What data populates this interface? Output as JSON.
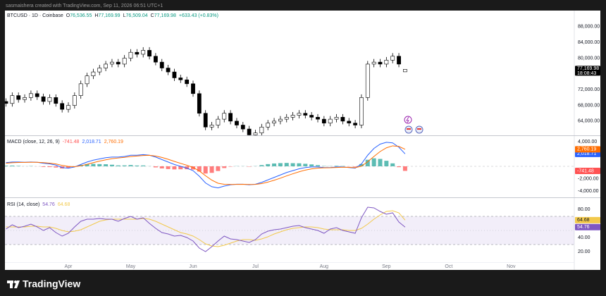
{
  "header": {
    "credit": "sasmaishera created with TradingView.com, Sep 11, 2026 06:51 UTC+1"
  },
  "footer": {
    "brand": "TradingView"
  },
  "chart_data": [
    {
      "type": "candlestick",
      "title": "BTCUSD · 1D · Coinbase",
      "legend": [
        {
          "label": "O",
          "value": "76,536.55"
        },
        {
          "label": "H",
          "value": "77,169.99"
        },
        {
          "label": "L",
          "value": "76,509.04"
        },
        {
          "label": "C",
          "value": "77,169.98"
        }
      ],
      "change": "+633.43 (+0.83%)",
      "last_label": "77,169.98",
      "countdown": "18:08:43",
      "up_color": "#ffffff",
      "down_color": "#000000",
      "wick_color": "#000000",
      "categories": [
        null,
        null,
        null,
        null,
        null,
        null,
        null,
        null,
        null,
        null,
        "Apr",
        null,
        null,
        null,
        null,
        null,
        null,
        null,
        null,
        null,
        "May",
        null,
        null,
        null,
        null,
        null,
        null,
        null,
        null,
        null,
        "Jun",
        null,
        null,
        null,
        null,
        null,
        null,
        null,
        null,
        null,
        "Jul",
        null,
        null,
        null,
        null,
        null,
        null,
        null,
        null,
        null,
        null,
        "Aug",
        null,
        null,
        null,
        null,
        null,
        null,
        null,
        null,
        null,
        "Sep",
        null,
        null,
        null,
        null,
        null,
        null,
        null,
        null,
        null,
        "Oct",
        null,
        null,
        null,
        null,
        null,
        null,
        null,
        null,
        null,
        "Nov",
        null,
        null,
        null,
        null,
        null,
        null,
        null,
        null,
        null
      ],
      "open": [
        69000,
        68500,
        70500,
        69500,
        70000,
        71000,
        70200,
        69000,
        70000,
        68500,
        67000,
        68000,
        70500,
        73500,
        75500,
        76500,
        77500,
        78500,
        79000,
        78500,
        80000,
        81500,
        81000,
        82000,
        80500,
        79000,
        77500,
        76500,
        75000,
        74500,
        73500,
        71000,
        66000,
        62500,
        63000,
        64500,
        66000,
        64000,
        63000,
        62000,
        60500,
        61000,
        62500,
        63500,
        64000,
        64500,
        65000,
        65500,
        66000,
        65500,
        65000,
        64500,
        63500,
        64500,
        65000,
        64000,
        63500,
        63000,
        70000,
        78500,
        79000,
        78500,
        79500,
        80500,
        76536.55,
        null,
        null,
        null,
        null,
        null,
        null,
        null,
        null,
        null,
        null,
        null,
        null,
        null,
        null,
        null,
        null,
        null,
        null,
        null,
        null,
        null,
        null,
        null,
        null,
        null,
        null
      ],
      "high": [
        69800,
        71300,
        71300,
        70800,
        71800,
        71800,
        71000,
        70800,
        70800,
        69300,
        68800,
        71300,
        74300,
        76300,
        77300,
        78300,
        79300,
        79800,
        79800,
        80800,
        82300,
        82300,
        82800,
        82800,
        81300,
        79800,
        78300,
        77300,
        75800,
        75300,
        74300,
        71800,
        66800,
        63800,
        65300,
        66800,
        66800,
        64800,
        63800,
        62800,
        61800,
        63300,
        64300,
        64800,
        65300,
        65800,
        66300,
        66800,
        66800,
        66300,
        65800,
        65300,
        65300,
        65800,
        65800,
        64800,
        64300,
        70800,
        79300,
        79800,
        79800,
        80300,
        81300,
        81300,
        77169.99,
        null,
        null,
        null,
        null,
        null,
        null,
        null,
        null,
        null,
        null,
        null,
        null,
        null,
        null,
        null,
        null,
        null,
        null,
        null,
        null,
        null,
        null,
        null,
        null,
        null,
        null
      ],
      "low": [
        67700,
        67700,
        68700,
        68700,
        69200,
        69400,
        68200,
        68200,
        67700,
        66200,
        66200,
        67200,
        69700,
        72700,
        74700,
        75700,
        76700,
        77700,
        77700,
        77700,
        79200,
        80200,
        80200,
        79700,
        78200,
        76700,
        75700,
        74200,
        73700,
        72700,
        70200,
        65200,
        61700,
        61700,
        62200,
        63700,
        63200,
        62200,
        61200,
        59700,
        59700,
        60200,
        61700,
        62700,
        63200,
        63700,
        64200,
        64700,
        64700,
        64200,
        63700,
        62700,
        62700,
        63700,
        63200,
        62700,
        62200,
        62200,
        69200,
        77700,
        77700,
        77700,
        78700,
        77700,
        76509.04,
        null,
        null,
        null,
        null,
        null,
        null,
        null,
        null,
        null,
        null,
        null,
        null,
        null,
        null,
        null,
        null,
        null,
        null,
        null,
        null,
        null,
        null,
        null,
        null,
        null,
        null
      ],
      "close": [
        68500,
        70500,
        69500,
        70000,
        71000,
        70200,
        69000,
        70000,
        68500,
        67000,
        68000,
        70500,
        73500,
        75500,
        76500,
        77500,
        78500,
        79000,
        78500,
        80000,
        81500,
        81000,
        82000,
        80500,
        79000,
        77500,
        76500,
        75000,
        74500,
        73500,
        71000,
        66000,
        62500,
        63000,
        64500,
        66000,
        64000,
        63000,
        62000,
        60500,
        61000,
        62500,
        63500,
        64000,
        64500,
        65000,
        65500,
        66000,
        65500,
        65000,
        64500,
        63500,
        64500,
        65000,
        64000,
        63500,
        63000,
        70000,
        78500,
        79000,
        78500,
        79500,
        80500,
        78500,
        77169.98,
        null,
        null,
        null,
        null,
        null,
        null,
        null,
        null,
        null,
        null,
        null,
        null,
        null,
        null,
        null,
        null,
        null,
        null,
        null,
        null,
        null,
        null,
        null,
        null,
        null,
        null
      ],
      "ylim": [
        60400,
        92100
      ],
      "yticks": [
        {
          "value": 64000,
          "label": "64,000.00"
        },
        {
          "value": 68000,
          "label": "68,000.00"
        },
        {
          "value": 72000,
          "label": "72,000.00"
        },
        {
          "value": 80000,
          "label": "80,000.00"
        },
        {
          "value": 84000,
          "label": "84,000.00"
        },
        {
          "value": 88000,
          "label": "88,000.00"
        }
      ]
    },
    {
      "type": "macd",
      "title": "MACD (close, 12, 26, 9)",
      "histogram": {
        "up_color": "#26a69a",
        "down_color": "#ff5252",
        "last_label": "-741.48",
        "values": [
          100,
          120,
          70,
          10,
          40,
          -10,
          -100,
          -120,
          -190,
          -350,
          -280,
          -40,
          220,
          370,
          400,
          360,
          340,
          260,
          150,
          150,
          210,
          130,
          140,
          20,
          -170,
          -340,
          -440,
          -500,
          -480,
          -470,
          -520,
          -850,
          -1170,
          -1060,
          -760,
          -280,
          -50,
          30,
          20,
          -50,
          30,
          200,
          360,
          460,
          520,
          550,
          510,
          490,
          410,
          310,
          190,
          50,
          30,
          80,
          50,
          -30,
          -80,
          370,
          1060,
          1300,
          1200,
          900,
          480,
          -130,
          -741.48,
          null,
          null,
          null,
          null,
          null,
          null,
          null,
          null,
          null,
          null,
          null,
          null,
          null,
          null,
          null,
          null,
          null,
          null,
          null,
          null,
          null,
          null,
          null,
          null,
          null,
          null
        ]
      },
      "series": [
        {
          "color": "#2962ff",
          "last_label": "2,018.71",
          "values": [
            600,
            700,
            700,
            650,
            700,
            650,
            500,
            400,
            200,
            -200,
            -300,
            -100,
            300,
            700,
            1000,
            1200,
            1400,
            1500,
            1500,
            1600,
            1800,
            1800,
            1900,
            1800,
            1500,
            1100,
            700,
            300,
            0,
            -300,
            -700,
            -1600,
            -2700,
            -3300,
            -3500,
            -3200,
            -3000,
            -2900,
            -2900,
            -3000,
            -2900,
            -2600,
            -2200,
            -1800,
            -1400,
            -1000,
            -700,
            -400,
            -200,
            -100,
            -100,
            -200,
            -200,
            -100,
            -100,
            -200,
            -300,
            400,
            1800,
            2900,
            3600,
            3900,
            3800,
            3100,
            2018.71,
            null,
            null,
            null,
            null,
            null,
            null,
            null,
            null,
            null,
            null,
            null,
            null,
            null,
            null,
            null,
            null,
            null,
            null,
            null,
            null,
            null,
            null,
            null,
            null,
            null,
            null
          ]
        },
        {
          "color": "#ff6d00",
          "last_label": "2,760.19",
          "values": [
            500,
            580,
            630,
            640,
            660,
            660,
            600,
            520,
            390,
            150,
            -20,
            -60,
            80,
            330,
            600,
            840,
            1060,
            1240,
            1350,
            1450,
            1590,
            1670,
            1760,
            1780,
            1670,
            1440,
            1140,
            800,
            480,
            170,
            -180,
            -750,
            -1530,
            -2240,
            -2740,
            -2920,
            -2950,
            -2930,
            -2920,
            -2950,
            -2930,
            -2800,
            -2560,
            -2260,
            -1920,
            -1550,
            -1210,
            -890,
            -610,
            -410,
            -290,
            -250,
            -230,
            -180,
            -150,
            -170,
            -220,
            30,
            740,
            1600,
            2400,
            3000,
            3320,
            3230,
            2760.19,
            null,
            null,
            null,
            null,
            null,
            null,
            null,
            null,
            null,
            null,
            null,
            null,
            null,
            null,
            null,
            null,
            null,
            null,
            null,
            null,
            null,
            null,
            null,
            null,
            null,
            null
          ]
        }
      ],
      "ylim": [
        -5030,
        4915
      ],
      "yticks": [
        {
          "value": 4000,
          "label": "4,000.00"
        },
        {
          "value": -2000,
          "label": "-2,000.00"
        },
        {
          "value": -4000,
          "label": "-4,000.00"
        }
      ]
    },
    {
      "type": "rsi",
      "title": "RSI (14, close)",
      "band": [
        30,
        70
      ],
      "midline": 50,
      "band_color": "#7e57c2",
      "series": [
        {
          "color": "#7e57c2",
          "last_label": "54.76",
          "values": [
            52,
            58,
            54,
            56,
            59,
            55,
            50,
            54,
            47,
            42,
            46,
            55,
            63,
            66,
            66,
            67,
            66,
            66,
            63,
            67,
            70,
            66,
            68,
            60,
            53,
            47,
            45,
            42,
            43,
            40,
            35,
            25,
            20,
            27,
            35,
            42,
            38,
            37,
            35,
            33,
            37,
            45,
            49,
            51,
            52,
            54,
            56,
            57,
            54,
            52,
            50,
            46,
            52,
            54,
            50,
            48,
            46,
            68,
            83,
            82,
            77,
            73,
            75,
            62,
            54.76,
            null,
            null,
            null,
            null,
            null,
            null,
            null,
            null,
            null,
            null,
            null,
            null,
            null,
            null,
            null,
            null,
            null,
            null,
            null,
            null,
            null,
            null,
            null,
            null,
            null,
            null
          ]
        },
        {
          "color": "#f2c94c",
          "last_label": "64.68",
          "values": [
            55,
            55,
            55,
            55,
            56,
            56,
            55,
            55,
            53,
            50,
            48,
            49,
            51,
            55,
            59,
            63,
            65,
            66,
            66,
            66,
            66,
            66,
            67,
            66,
            63,
            59,
            55,
            51,
            47,
            45,
            42,
            37,
            31,
            28,
            27,
            29,
            32,
            35,
            37,
            37,
            36,
            38,
            41,
            45,
            48,
            51,
            53,
            54,
            55,
            55,
            54,
            52,
            51,
            51,
            51,
            50,
            50,
            53,
            59,
            66,
            72,
            77,
            78,
            75,
            64.68,
            null,
            null,
            null,
            null,
            null,
            null,
            null,
            null,
            null,
            null,
            null,
            null,
            null,
            null,
            null,
            null,
            null,
            null,
            null,
            null,
            null,
            null,
            null,
            null,
            null,
            null
          ]
        }
      ],
      "ylim": [
        5,
        96
      ],
      "yticks": [
        {
          "value": 80,
          "label": "80.00"
        },
        {
          "value": 40,
          "label": "40.00"
        },
        {
          "value": 20,
          "label": "20.00"
        }
      ]
    }
  ]
}
